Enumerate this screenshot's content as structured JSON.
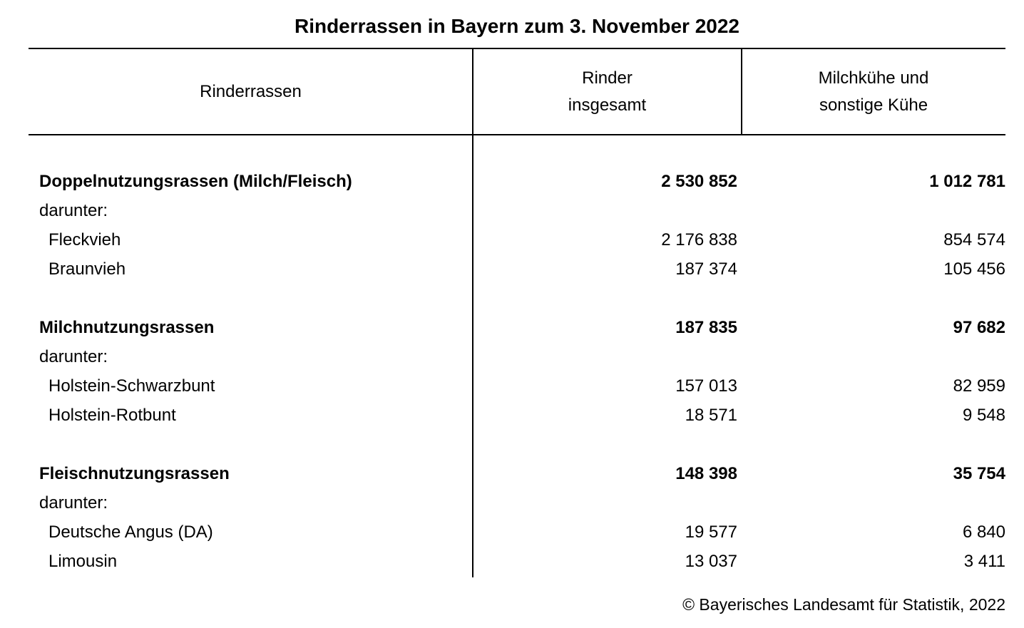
{
  "title": "Rinderrassen in Bayern zum 3. November 2022",
  "footer": "© Bayerisches Landesamt für Statistik, 2022",
  "colors": {
    "background": "#ffffff",
    "text": "#000000",
    "rule": "#000000"
  },
  "header": {
    "col1": "Rinderrassen",
    "col2": "Rinder\ninsgesamt",
    "col3": "Milchkühe und\nsonstige Kühe"
  },
  "chart_data": {
    "type": "table",
    "title": "Rinderrassen in Bayern zum 3. November 2022",
    "columns": [
      "Rinderrassen",
      "Rinder insgesamt",
      "Milchkühe und sonstige Kühe"
    ],
    "rows": [
      {
        "style": "group",
        "label": "Doppelnutzungsrassen (Milch/Fleisch)",
        "values": [
          2530852,
          1012781
        ]
      },
      {
        "style": "sub",
        "label": "darunter:",
        "values": [
          null,
          null
        ]
      },
      {
        "style": "item",
        "label": "Fleckvieh",
        "values": [
          2176838,
          854574
        ]
      },
      {
        "style": "item",
        "label": "Braunvieh",
        "values": [
          187374,
          105456
        ]
      },
      {
        "style": "spacer",
        "label": "",
        "values": [
          null,
          null
        ]
      },
      {
        "style": "group",
        "label": "Milchnutzungsrassen",
        "values": [
          187835,
          97682
        ]
      },
      {
        "style": "sub",
        "label": "darunter:",
        "values": [
          null,
          null
        ]
      },
      {
        "style": "item",
        "label": "Holstein-Schwarzbunt",
        "values": [
          157013,
          82959
        ]
      },
      {
        "style": "item",
        "label": "Holstein-Rotbunt",
        "values": [
          18571,
          9548
        ]
      },
      {
        "style": "spacer",
        "label": "",
        "values": [
          null,
          null
        ]
      },
      {
        "style": "group",
        "label": "Fleischnutzungsrassen",
        "values": [
          148398,
          35754
        ]
      },
      {
        "style": "sub",
        "label": "darunter:",
        "values": [
          null,
          null
        ]
      },
      {
        "style": "item",
        "label": "Deutsche Angus (DA)",
        "values": [
          19577,
          6840
        ]
      },
      {
        "style": "item",
        "label": "Limousin",
        "values": [
          13037,
          3411
        ]
      }
    ],
    "number_format": "space-grouped thousands",
    "layout": {
      "column_dividers": "full-height between col1/col2, header-only between col2/col3",
      "grid": "horizontal rules above and below header only"
    }
  }
}
